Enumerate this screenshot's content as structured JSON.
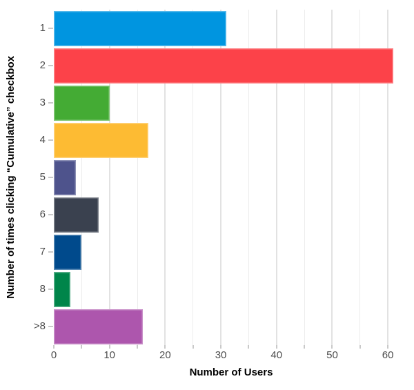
{
  "chart_data": {
    "type": "bar",
    "orientation": "horizontal",
    "title": "",
    "xlabel": "Number of Users",
    "ylabel": "Number of times clicking “Cumulative” checkbox",
    "categories": [
      "1",
      "2",
      "3",
      "4",
      "5",
      "6",
      "7",
      "8",
      ">8"
    ],
    "values": [
      31,
      61,
      10,
      17,
      4,
      8,
      5,
      3,
      16
    ],
    "bar_colors": [
      "#0095e0",
      "#fc4249",
      "#44ab34",
      "#fdbb33",
      "#4e538c",
      "#3a414f",
      "#004a8c",
      "#00854a",
      "#ad56ad"
    ],
    "xlim": [
      0,
      63.7
    ],
    "x_ticks": [
      0,
      10,
      20,
      30,
      40,
      50,
      60
    ],
    "minor_grid_step": 5,
    "grid": "vertical-only",
    "legend": "none",
    "style": {
      "background": "#ffffff",
      "gridline_major": "#e2e2e2",
      "gridline_minor": "#ececec",
      "tick_mark_color": "#c9c9c9",
      "tick_label_color": "#4d4d4d",
      "axis_title_color": "#000000"
    }
  }
}
